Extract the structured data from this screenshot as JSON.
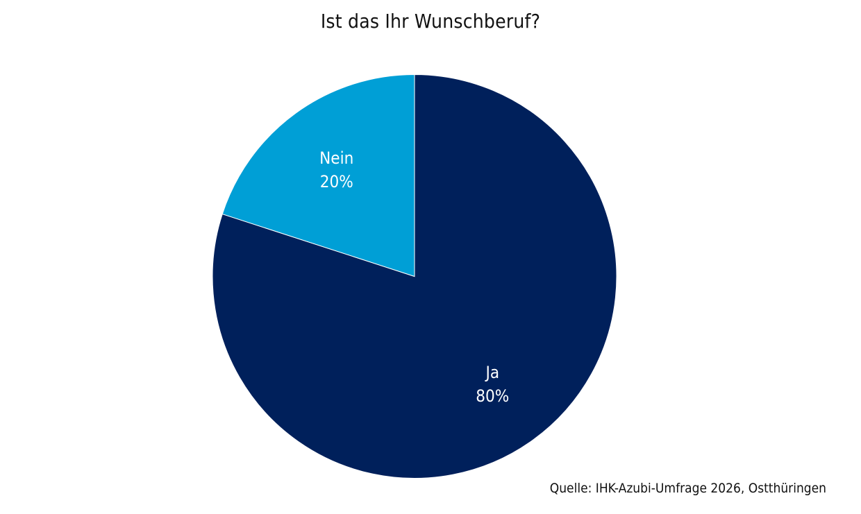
{
  "chart_data": {
    "type": "pie",
    "title": "Ist das Ihr Wunschberuf?",
    "slices": [
      {
        "label": "Ja",
        "value": 80,
        "value_label": "80%",
        "color": "#00205b"
      },
      {
        "label": "Nein",
        "value": 20,
        "value_label": "20%",
        "color": "#009fd6"
      }
    ],
    "legend": "none",
    "source": "Quelle: IHK-Azubi-Umfrage 2026, Ostthüringen"
  }
}
